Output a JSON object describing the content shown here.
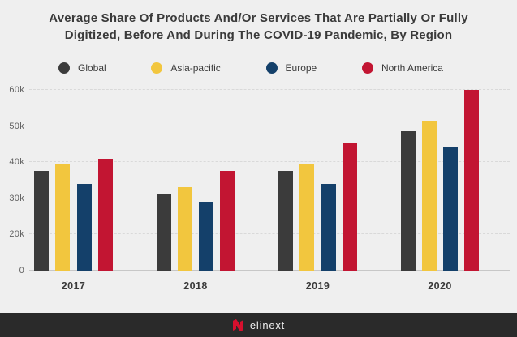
{
  "chart_data": {
    "type": "bar",
    "title": "Average Share Of Products And/Or Services That Are Partially Or Fully Digitized, Before And During The COVID-19 Pandemic, By Region",
    "xlabel": "",
    "ylabel": "",
    "unit": "k",
    "ylim": [
      0,
      60
    ],
    "grid": "dashed horizontal gridlines",
    "legend_position": "top",
    "y_ticks": [
      {
        "value": 0,
        "label": "0"
      },
      {
        "value": 20,
        "label": "20k"
      },
      {
        "value": 30,
        "label": "30k"
      },
      {
        "value": 40,
        "label": "40k"
      },
      {
        "value": 50,
        "label": "50k"
      },
      {
        "value": 60,
        "label": "60k"
      }
    ],
    "y_axis_note": "tick labels are equally spaced on screen",
    "categories": [
      "2017",
      "2018",
      "2019",
      "2020"
    ],
    "series": [
      {
        "name": "Global",
        "color": "#3b3b3b",
        "values": [
          37.5,
          31,
          37.5,
          48.5
        ]
      },
      {
        "name": "Asia-pacific",
        "color": "#f2c63e",
        "values": [
          39.5,
          33,
          39.5,
          51.5
        ]
      },
      {
        "name": "Europe",
        "color": "#14406a",
        "values": [
          34,
          29,
          34,
          44
        ]
      },
      {
        "name": "North America",
        "color": "#c21532",
        "values": [
          41,
          37.5,
          45.5,
          60
        ]
      }
    ]
  },
  "footer": {
    "brand": "elinext"
  },
  "colors": {
    "background": "#efefef",
    "title_text": "#3a3a3a",
    "axis_text": "#616161",
    "x_axis_text": "#3a3a3a",
    "grid_line": "#d9d9d9",
    "axis_line": "#c7c7c7",
    "footer_background": "#2a2a2a",
    "footer_text": "#ededed",
    "logo_red": "#d8102e"
  }
}
